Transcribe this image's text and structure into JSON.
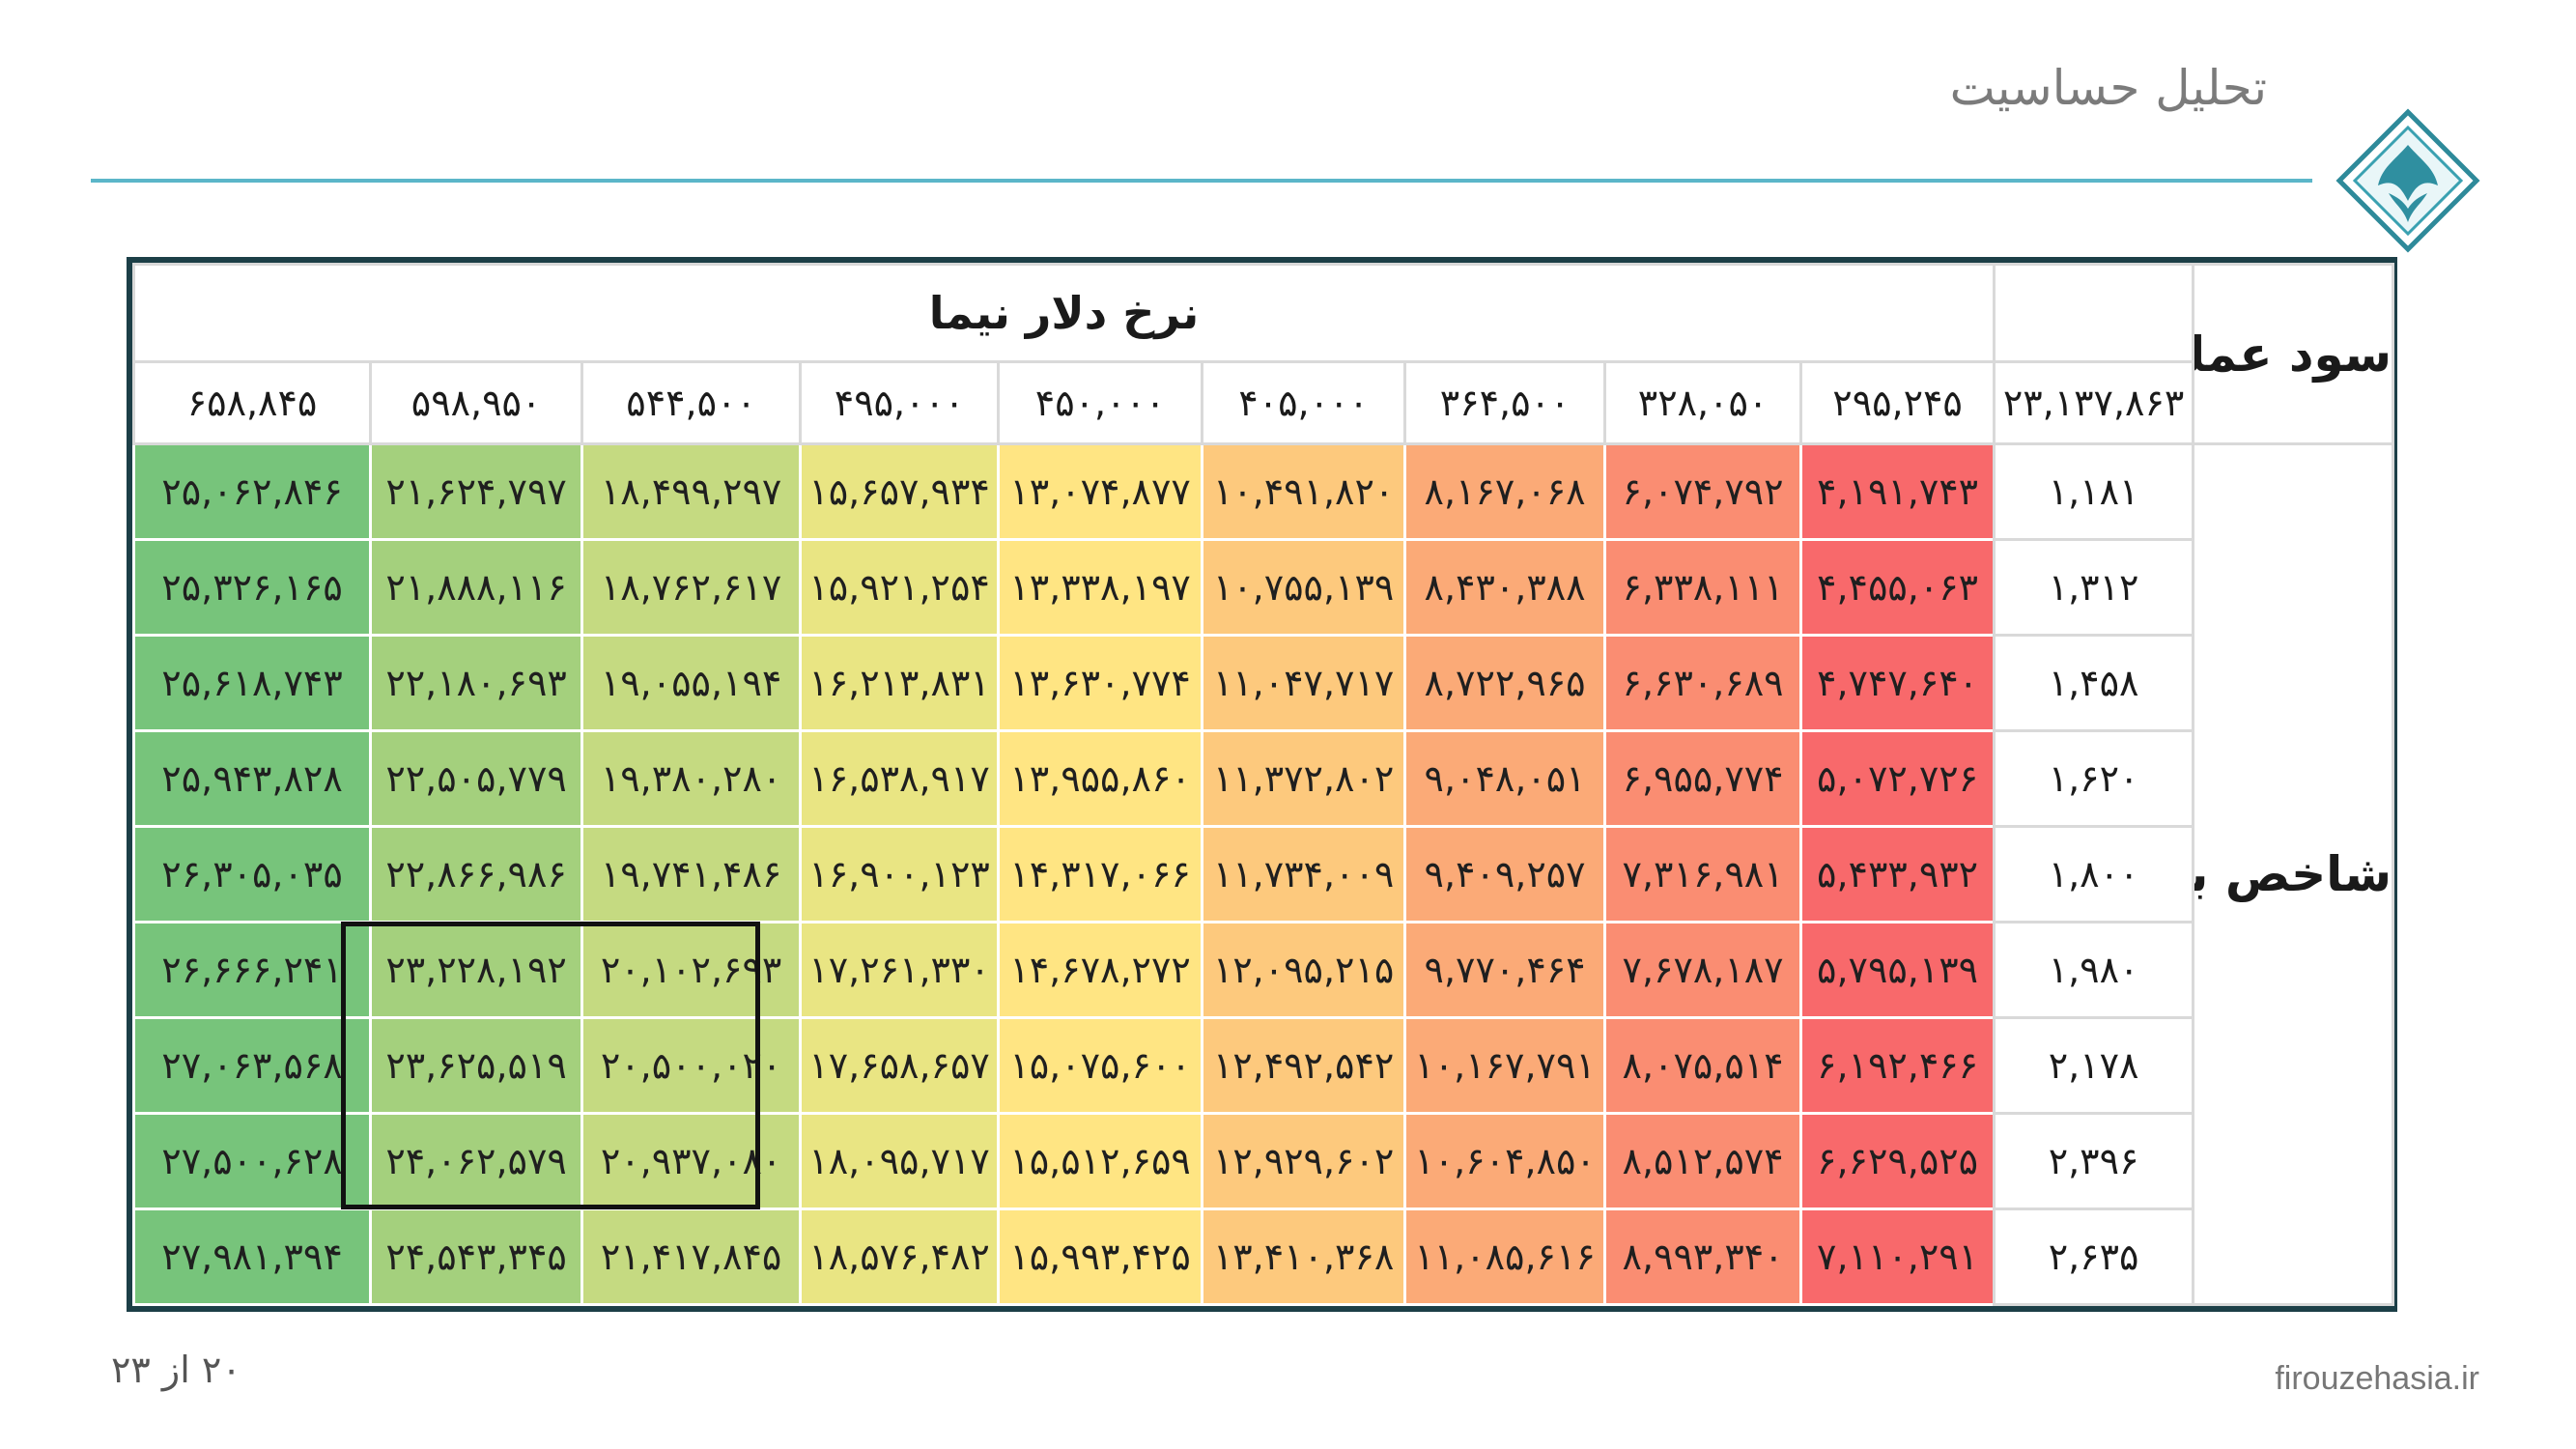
{
  "header": {
    "title": "تحلیل حساسیت"
  },
  "table": {
    "corner_label": "سود عملیاتی",
    "top_label": "نرخ دلار نیما",
    "side_label": "شاخص بالتیک",
    "base_value": "۲۳,۱۳۷,۸۶۳",
    "col_headers": [
      "۲۹۵,۲۴۵",
      "۳۲۸,۰۵۰",
      "۳۶۴,۵۰۰",
      "۴۰۵,۰۰۰",
      "۴۵۰,۰۰۰",
      "۴۹۵,۰۰۰",
      "۵۴۴,۵۰۰",
      "۵۹۸,۹۵۰",
      "۶۵۸,۸۴۵"
    ],
    "row_headers": [
      "۱,۱۸۱",
      "۱,۳۱۲",
      "۱,۴۵۸",
      "۱,۶۲۰",
      "۱,۸۰۰",
      "۱,۹۸۰",
      "۲,۱۷۸",
      "۲,۳۹۶",
      "۲,۶۳۵"
    ],
    "rows": [
      [
        "۴,۱۹۱,۷۴۳",
        "۶,۰۷۴,۷۹۲",
        "۸,۱۶۷,۰۶۸",
        "۱۰,۴۹۱,۸۲۰",
        "۱۳,۰۷۴,۸۷۷",
        "۱۵,۶۵۷,۹۳۴",
        "۱۸,۴۹۹,۲۹۷",
        "۲۱,۶۲۴,۷۹۷",
        "۲۵,۰۶۲,۸۴۶"
      ],
      [
        "۴,۴۵۵,۰۶۳",
        "۶,۳۳۸,۱۱۱",
        "۸,۴۳۰,۳۸۸",
        "۱۰,۷۵۵,۱۳۹",
        "۱۳,۳۳۸,۱۹۷",
        "۱۵,۹۲۱,۲۵۴",
        "۱۸,۷۶۲,۶۱۷",
        "۲۱,۸۸۸,۱۱۶",
        "۲۵,۳۲۶,۱۶۵"
      ],
      [
        "۴,۷۴۷,۶۴۰",
        "۶,۶۳۰,۶۸۹",
        "۸,۷۲۲,۹۶۵",
        "۱۱,۰۴۷,۷۱۷",
        "۱۳,۶۳۰,۷۷۴",
        "۱۶,۲۱۳,۸۳۱",
        "۱۹,۰۵۵,۱۹۴",
        "۲۲,۱۸۰,۶۹۳",
        "۲۵,۶۱۸,۷۴۳"
      ],
      [
        "۵,۰۷۲,۷۲۶",
        "۶,۹۵۵,۷۷۴",
        "۹,۰۴۸,۰۵۱",
        "۱۱,۳۷۲,۸۰۲",
        "۱۳,۹۵۵,۸۶۰",
        "۱۶,۵۳۸,۹۱۷",
        "۱۹,۳۸۰,۲۸۰",
        "۲۲,۵۰۵,۷۷۹",
        "۲۵,۹۴۳,۸۲۸"
      ],
      [
        "۵,۴۳۳,۹۳۲",
        "۷,۳۱۶,۹۸۱",
        "۹,۴۰۹,۲۵۷",
        "۱۱,۷۳۴,۰۰۹",
        "۱۴,۳۱۷,۰۶۶",
        "۱۶,۹۰۰,۱۲۳",
        "۱۹,۷۴۱,۴۸۶",
        "۲۲,۸۶۶,۹۸۶",
        "۲۶,۳۰۵,۰۳۵"
      ],
      [
        "۵,۷۹۵,۱۳۹",
        "۷,۶۷۸,۱۸۷",
        "۹,۷۷۰,۴۶۴",
        "۱۲,۰۹۵,۲۱۵",
        "۱۴,۶۷۸,۲۷۲",
        "۱۷,۲۶۱,۳۳۰",
        "۲۰,۱۰۲,۶۹۳",
        "۲۳,۲۲۸,۱۹۲",
        "۲۶,۶۶۶,۲۴۱"
      ],
      [
        "۶,۱۹۲,۴۶۶",
        "۸,۰۷۵,۵۱۴",
        "۱۰,۱۶۷,۷۹۱",
        "۱۲,۴۹۲,۵۴۲",
        "۱۵,۰۷۵,۶۰۰",
        "۱۷,۶۵۸,۶۵۷",
        "۲۰,۵۰۰,۰۲۰",
        "۲۳,۶۲۵,۵۱۹",
        "۲۷,۰۶۳,۵۶۸"
      ],
      [
        "۶,۶۲۹,۵۲۵",
        "۸,۵۱۲,۵۷۴",
        "۱۰,۶۰۴,۸۵۰",
        "۱۲,۹۲۹,۶۰۲",
        "۱۵,۵۱۲,۶۵۹",
        "۱۸,۰۹۵,۷۱۷",
        "۲۰,۹۳۷,۰۸۰",
        "۲۴,۰۶۲,۵۷۹",
        "۲۷,۵۰۰,۶۲۸"
      ],
      [
        "۷,۱۱۰,۲۹۱",
        "۸,۹۹۳,۳۴۰",
        "۱۱,۰۸۵,۶۱۶",
        "۱۳,۴۱۰,۳۶۸",
        "۱۵,۹۹۳,۴۲۵",
        "۱۸,۵۷۶,۴۸۲",
        "۲۱,۴۱۷,۸۴۵",
        "۲۴,۵۴۳,۳۴۵",
        "۲۷,۹۸۱,۳۹۴"
      ]
    ],
    "column_colors": [
      "#f8696b",
      "#fa8d72",
      "#fbaa77",
      "#fdc97d",
      "#ffe583",
      "#e9e583",
      "#c5da81",
      "#a4d07d",
      "#77c47b"
    ]
  },
  "footer": {
    "page": "۲۰ از ۲۳",
    "site": "firouzehasia.ir"
  }
}
